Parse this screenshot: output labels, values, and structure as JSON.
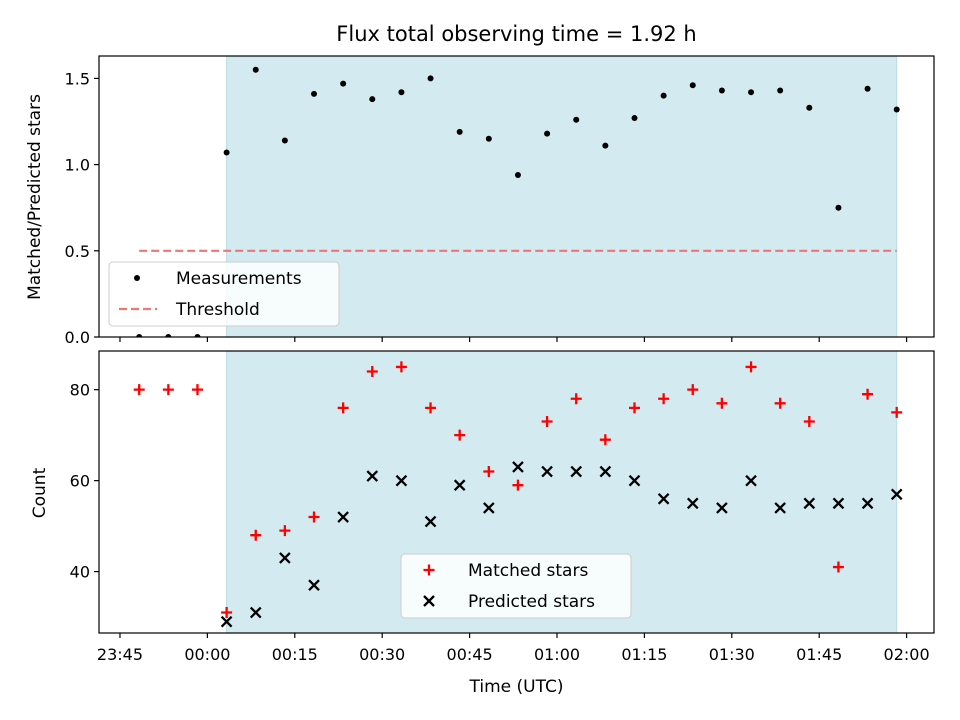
{
  "chart_data": {
    "type": "scatter",
    "title": "Flux total observing time = 1.92 h",
    "xlabel": "Time (UTC)",
    "x_tick_labels": [
      "23:45",
      "00:00",
      "00:15",
      "00:30",
      "00:45",
      "01:00",
      "01:15",
      "01:30",
      "01:45",
      "02:00"
    ],
    "x_tick_minutes": [
      -15,
      0,
      15,
      30,
      45,
      60,
      75,
      90,
      105,
      120
    ],
    "xlim_minutes": [
      -18.6,
      124.7
    ],
    "times_minutes": [
      -11.7,
      -6.7,
      -1.7,
      3.3,
      8.3,
      13.3,
      18.3,
      23.3,
      28.3,
      33.3,
      38.3,
      43.3,
      48.3,
      53.3,
      58.3,
      63.3,
      68.3,
      73.3,
      78.3,
      83.3,
      88.3,
      93.3,
      98.3,
      103.3,
      108.3,
      113.3,
      118.3
    ],
    "observing_window_minutes": [
      3.3,
      118.3
    ],
    "observing_window_color": "#d3ebf0",
    "top_panel": {
      "ylabel": "Matched/Predicted stars",
      "ylim": [
        0,
        1.63
      ],
      "y_ticks": [
        0.0,
        0.5,
        1.0,
        1.5
      ],
      "y_tick_labels": [
        "0.0",
        "0.5",
        "1.0",
        "1.5"
      ],
      "series": [
        {
          "name": "Measurements",
          "marker": "dot",
          "color": "#000000",
          "values": [
            0,
            0,
            0,
            1.07,
            1.55,
            1.14,
            1.41,
            1.47,
            1.38,
            1.42,
            1.5,
            1.19,
            1.15,
            0.94,
            1.18,
            1.26,
            1.11,
            1.27,
            1.4,
            1.46,
            1.43,
            1.42,
            1.43,
            1.33,
            0.75,
            1.44,
            1.32
          ]
        },
        {
          "name": "Threshold",
          "marker": "dashed-line",
          "color": "#f07575",
          "value": 0.5,
          "x_range_minutes": [
            -11.7,
            118.3
          ]
        }
      ],
      "legend_position": "lower-left"
    },
    "bottom_panel": {
      "ylabel": "Count",
      "ylim": [
        26.5,
        88.5
      ],
      "y_ticks": [
        40,
        60,
        80
      ],
      "y_tick_labels": [
        "40",
        "60",
        "80"
      ],
      "series": [
        {
          "name": "Matched stars",
          "marker": "plus",
          "color": "#ff0000",
          "values": [
            80,
            80,
            80,
            31,
            48,
            49,
            52,
            76,
            84,
            85,
            76,
            70,
            62,
            59,
            73,
            78,
            69,
            76,
            78,
            80,
            77,
            85,
            77,
            73,
            41,
            79,
            75
          ]
        },
        {
          "name": "Predicted stars",
          "marker": "x",
          "color": "#000000",
          "values": [
            null,
            null,
            null,
            29,
            31,
            43,
            37,
            52,
            61,
            60,
            51,
            59,
            54,
            63,
            62,
            62,
            62,
            60,
            56,
            55,
            54,
            60,
            54,
            55,
            55,
            55,
            57
          ]
        }
      ],
      "legend_position": "lower-center"
    }
  }
}
